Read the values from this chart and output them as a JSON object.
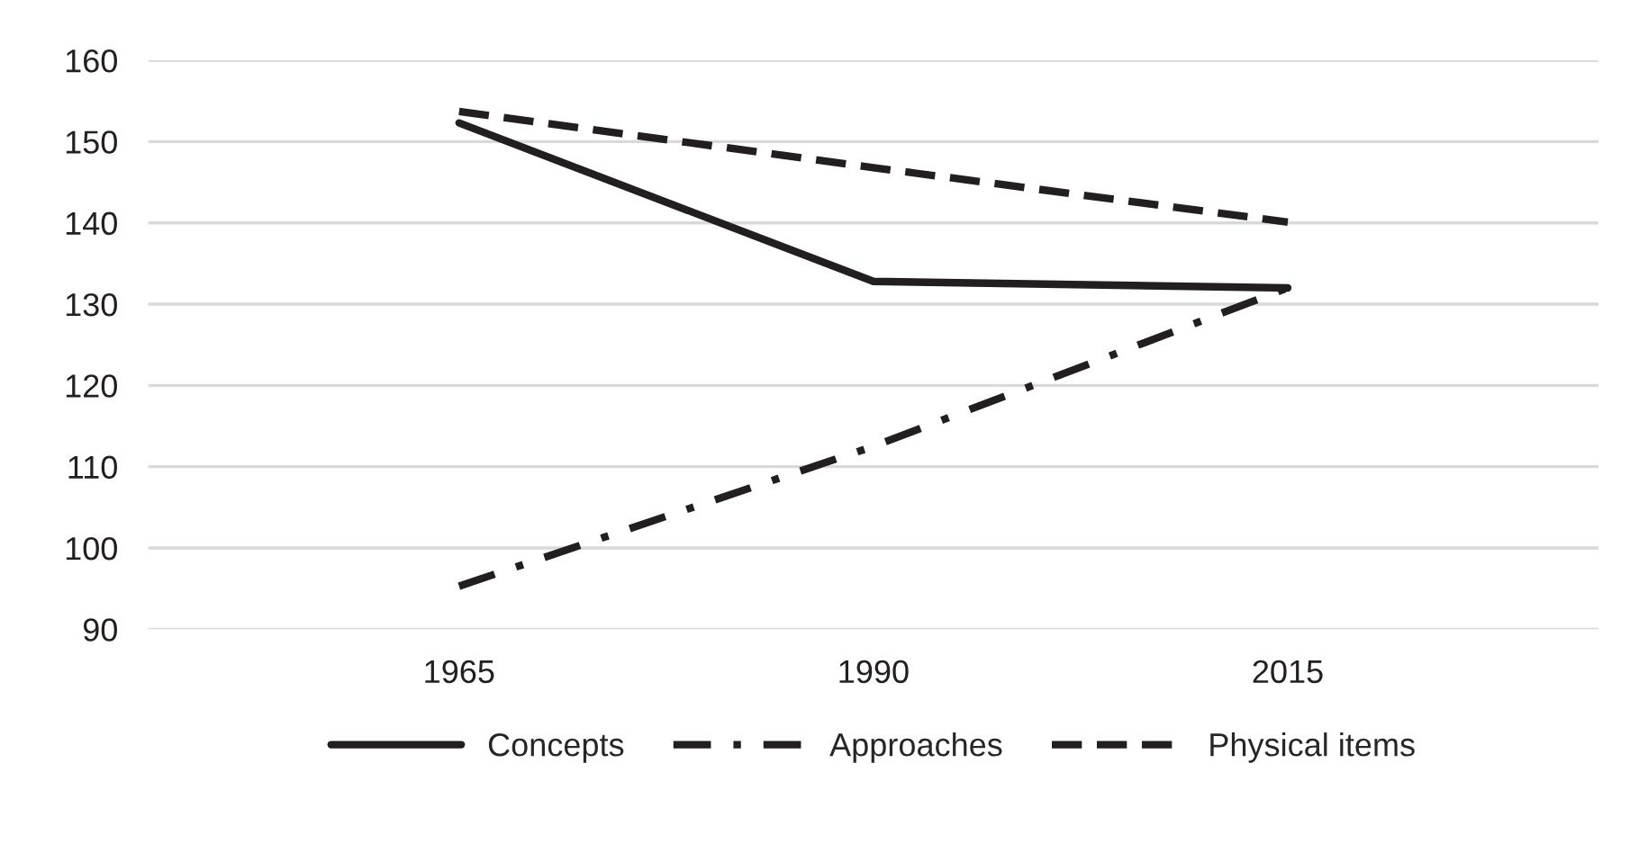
{
  "chart_data": {
    "type": "line",
    "categories": [
      "1965",
      "1990",
      "2015"
    ],
    "series": [
      {
        "name": "Concepts",
        "color": "#231f20",
        "line_style": "solid",
        "values": [
          152.3,
          132.8,
          132.0
        ]
      },
      {
        "name": "Approaches",
        "color": "#231f20",
        "line_style": "dashdot",
        "values": [
          95.3,
          112.5,
          132.0
        ]
      },
      {
        "name": "Physical items",
        "color": "#231f20",
        "line_style": "dashed",
        "values": [
          153.7,
          146.8,
          140.1
        ]
      }
    ],
    "ylim": [
      90,
      160
    ],
    "yticks": [
      90,
      100,
      110,
      120,
      130,
      140,
      150,
      160
    ],
    "grid": "y",
    "legend": "bottom",
    "marker": "none"
  }
}
